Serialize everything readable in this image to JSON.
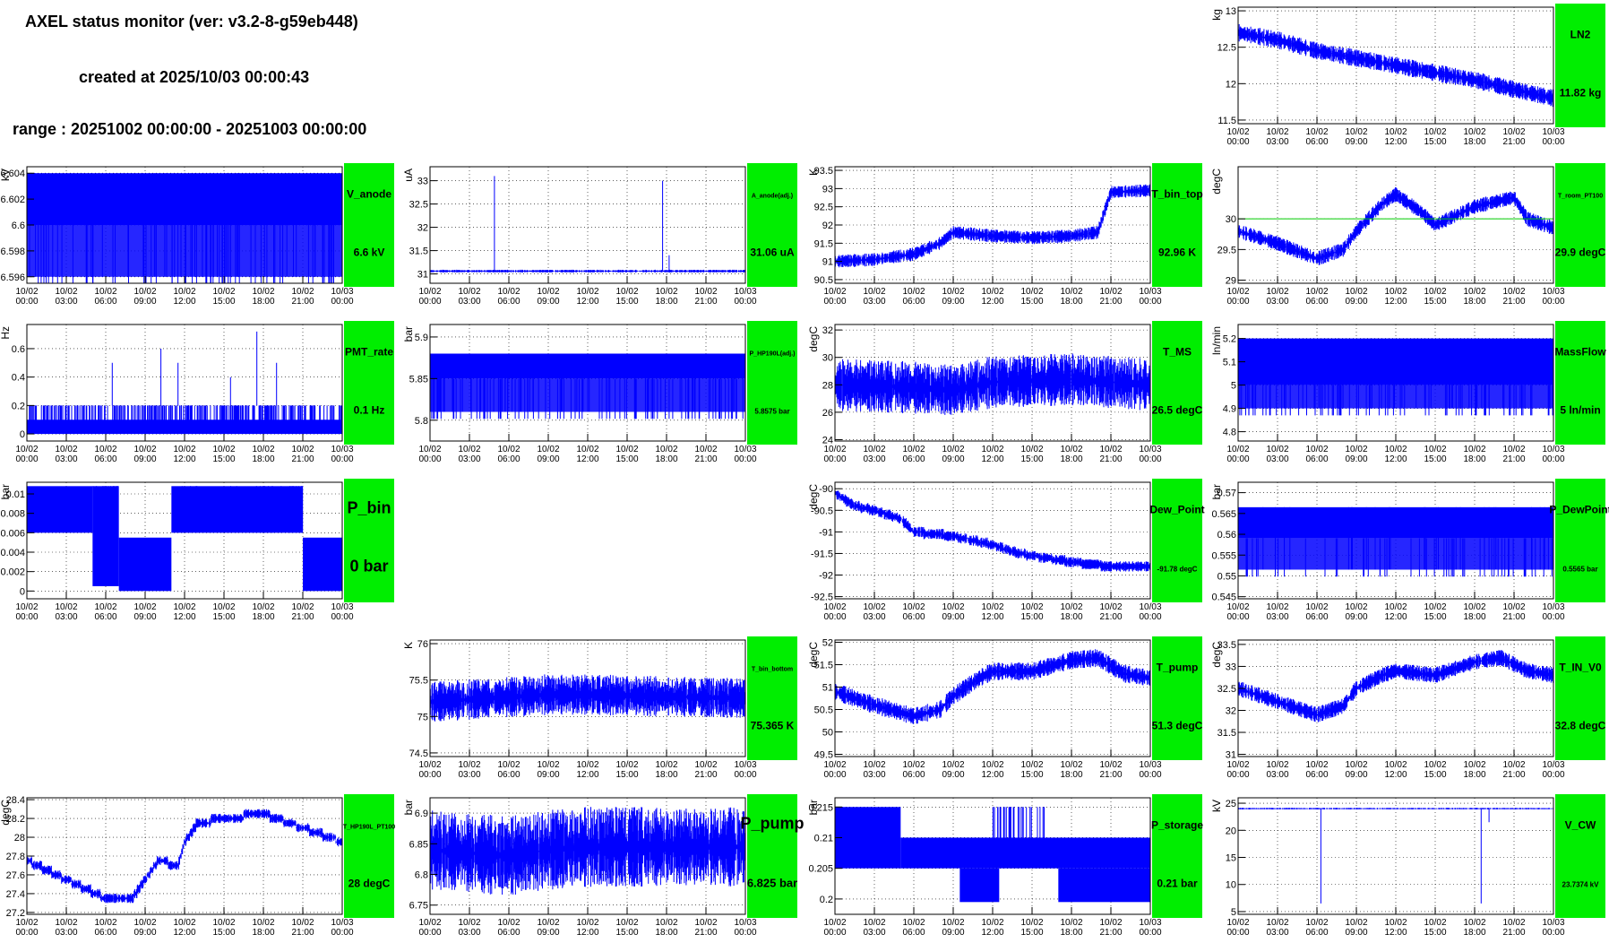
{
  "header": {
    "title": "AXEL status monitor (ver: v3.2-8-g59eb448)",
    "created": "created at 2025/10/03 00:00:43",
    "range": "range : 20251002 00:00:00 - 20251003 00:00:00"
  },
  "time_ticks": [
    {
      "date": "10/02",
      "time": "00:00"
    },
    {
      "date": "10/02",
      "time": "03:00"
    },
    {
      "date": "10/02",
      "time": "06:00"
    },
    {
      "date": "10/02",
      "time": "09:00"
    },
    {
      "date": "10/02",
      "time": "12:00"
    },
    {
      "date": "10/02",
      "time": "15:00"
    },
    {
      "date": "10/02",
      "time": "18:00"
    },
    {
      "date": "10/02",
      "time": "21:00"
    },
    {
      "date": "10/03",
      "time": "00:00"
    }
  ],
  "colors": {
    "trace": "#0000ff",
    "label_box": "#00ee00",
    "ref_line": "#00cc00"
  },
  "chart_data": [
    {
      "id": "LN2",
      "type": "line",
      "row": 0,
      "col": 3,
      "unit": "kg",
      "name": "LN2",
      "value": "11.82 kg",
      "bigfont": false,
      "ylim": [
        11.45,
        13.05
      ],
      "yticks": [
        "11.5",
        "12",
        "12.5",
        "13"
      ],
      "ytick_vals": [
        11.5,
        12,
        12.5,
        13
      ],
      "shape": "band",
      "points": [
        [
          0,
          12.7
        ],
        [
          3,
          12.6
        ],
        [
          6,
          12.45
        ],
        [
          9,
          12.35
        ],
        [
          12,
          12.25
        ],
        [
          15,
          12.15
        ],
        [
          18,
          12.05
        ],
        [
          21,
          11.92
        ],
        [
          24,
          11.8
        ]
      ],
      "noise": 0.12
    },
    {
      "id": "V_anode",
      "type": "line",
      "row": 1,
      "col": 0,
      "unit": "kV",
      "name": "V_anode",
      "value": "6.6 kV",
      "bigfont": false,
      "ylim": [
        6.5955,
        6.6045
      ],
      "yticks": [
        "6.596",
        "6.598",
        "6.6",
        "6.602",
        "6.604"
      ],
      "ytick_vals": [
        6.596,
        6.598,
        6.6,
        6.602,
        6.604
      ],
      "shape": "toggle",
      "levels": [
        6.604,
        6.596
      ],
      "split": 6.6,
      "drops": 60
    },
    {
      "id": "A_anode",
      "type": "line",
      "row": 1,
      "col": 1,
      "unit": "uA",
      "name": "A_anode(adj.)",
      "value": "31.06 uA",
      "bigfont": false,
      "ylim": [
        30.8,
        33.3
      ],
      "yticks": [
        "31",
        "31.5",
        "32",
        "32.5",
        "33"
      ],
      "ytick_vals": [
        31,
        31.5,
        32,
        32.5,
        33
      ],
      "shape": "flat",
      "points": [
        [
          0,
          31.06
        ],
        [
          24,
          31.06
        ]
      ],
      "noise": 0.03,
      "spikes": [
        [
          4.9,
          33.1
        ],
        [
          17.7,
          33.0
        ],
        [
          18.2,
          31.4
        ]
      ]
    },
    {
      "id": "T_bin_top",
      "type": "line",
      "row": 1,
      "col": 2,
      "unit": "K",
      "name": "T_bin_top",
      "value": "92.96 K",
      "bigfont": false,
      "ylim": [
        90.4,
        93.6
      ],
      "yticks": [
        "90.5",
        "91",
        "91.5",
        "92",
        "92.5",
        "93",
        "93.5"
      ],
      "ytick_vals": [
        90.5,
        91,
        91.5,
        92,
        92.5,
        93,
        93.5
      ],
      "shape": "noisy",
      "points": [
        [
          0,
          91.0
        ],
        [
          3,
          91.05
        ],
        [
          6,
          91.2
        ],
        [
          8,
          91.5
        ],
        [
          9,
          91.8
        ],
        [
          12,
          91.7
        ],
        [
          15,
          91.65
        ],
        [
          18,
          91.7
        ],
        [
          20,
          91.8
        ],
        [
          21,
          92.9
        ],
        [
          24,
          92.95
        ]
      ],
      "noise": 0.18
    },
    {
      "id": "T_room",
      "type": "line",
      "row": 1,
      "col": 3,
      "unit": "degC",
      "name": "T_room_PT100",
      "value": "29.9 degC",
      "bigfont": false,
      "ylim": [
        28.95,
        30.85
      ],
      "yticks": [
        "29",
        "29.5",
        "30"
      ],
      "ytick_vals": [
        29,
        29.5,
        30
      ],
      "shape": "noisy",
      "points": [
        [
          0,
          29.8
        ],
        [
          3,
          29.6
        ],
        [
          6,
          29.35
        ],
        [
          8,
          29.5
        ],
        [
          9,
          29.8
        ],
        [
          11,
          30.25
        ],
        [
          12,
          30.4
        ],
        [
          14,
          30.1
        ],
        [
          15,
          29.9
        ],
        [
          18,
          30.2
        ],
        [
          21,
          30.35
        ],
        [
          22,
          30.0
        ],
        [
          24,
          29.85
        ]
      ],
      "noise": 0.12,
      "refline": 30.0
    },
    {
      "id": "PMT_rate",
      "type": "line",
      "row": 2,
      "col": 0,
      "unit": "Hz",
      "name": "PMT_rate",
      "value": "0.1 Hz",
      "bigfont": false,
      "ylim": [
        -0.05,
        0.77
      ],
      "yticks": [
        "0",
        "0.2",
        "0.4",
        "0.6"
      ],
      "ytick_vals": [
        0,
        0.2,
        0.4,
        0.6
      ],
      "shape": "toggle3",
      "levels": [
        0.2,
        0.1,
        0.0
      ],
      "spikes": [
        [
          6.5,
          0.5
        ],
        [
          10.2,
          0.6
        ],
        [
          11.5,
          0.5
        ],
        [
          15.5,
          0.4
        ],
        [
          17.5,
          0.72
        ],
        [
          19,
          0.5
        ]
      ]
    },
    {
      "id": "P_HP190L",
      "type": "line",
      "row": 2,
      "col": 1,
      "unit": "bar",
      "name": "P_HP190L(adj.)",
      "value": "5.8575 bar",
      "bigfont": false,
      "ylim": [
        5.775,
        5.915
      ],
      "yticks": [
        "5.8",
        "5.85",
        "5.9"
      ],
      "ytick_vals": [
        5.8,
        5.85,
        5.9
      ],
      "shape": "toggle",
      "levels": [
        5.88,
        5.81
      ],
      "split": 5.85,
      "drops": 80
    },
    {
      "id": "T_MS",
      "type": "line",
      "row": 2,
      "col": 2,
      "unit": "degC",
      "name": "T_MS",
      "value": "26.5 degC",
      "bigfont": false,
      "ylim": [
        23.9,
        32.4
      ],
      "yticks": [
        "24",
        "26",
        "28",
        "30",
        "32"
      ],
      "ytick_vals": [
        24,
        26,
        28,
        30,
        32
      ],
      "shape": "noisy",
      "points": [
        [
          0,
          28.0
        ],
        [
          6,
          27.8
        ],
        [
          9,
          27.6
        ],
        [
          12,
          28.2
        ],
        [
          18,
          28.4
        ],
        [
          24,
          28.0
        ]
      ],
      "noise": 1.9
    },
    {
      "id": "MassFlow",
      "type": "line",
      "row": 2,
      "col": 3,
      "unit": "ln/min",
      "name": "MassFlow",
      "value": "5 ln/min",
      "bigfont": false,
      "ylim": [
        4.76,
        5.26
      ],
      "yticks": [
        "4.8",
        "4.9",
        "5",
        "5.1",
        "5.2"
      ],
      "ytick_vals": [
        4.8,
        4.9,
        5.0,
        5.1,
        5.2
      ],
      "shape": "toggle",
      "levels": [
        5.2,
        4.9
      ],
      "split": 5.0,
      "drops": 70
    },
    {
      "id": "P_bin",
      "type": "line",
      "row": 3,
      "col": 0,
      "unit": "bar",
      "name": "P_bin",
      "value": "0 bar",
      "bigfont": true,
      "ylim": [
        -0.0008,
        0.0112
      ],
      "yticks": [
        "0",
        "0.002",
        "0.004",
        "0.006",
        "0.008",
        "0.01"
      ],
      "ytick_vals": [
        0,
        0.002,
        0.004,
        0.006,
        0.008,
        0.01
      ],
      "shape": "pbin"
    },
    {
      "id": "Dew_Point",
      "type": "line",
      "row": 3,
      "col": 2,
      "unit": "degC",
      "name": "Dew_Point",
      "value": "-91.78 degC",
      "bigfont": false,
      "ylim": [
        -92.55,
        -89.85
      ],
      "yticks": [
        "-92.5",
        "-92",
        "-91.5",
        "-91",
        "-90.5",
        "-90"
      ],
      "ytick_vals": [
        -92.5,
        -92,
        -91.5,
        -91,
        -90.5,
        -90
      ],
      "shape": "steps",
      "points": [
        [
          0,
          -90.1
        ],
        [
          1.5,
          -90.4
        ],
        [
          3,
          -90.5
        ],
        [
          5,
          -90.7
        ],
        [
          6,
          -91.0
        ],
        [
          9,
          -91.1
        ],
        [
          12,
          -91.3
        ],
        [
          14,
          -91.5
        ],
        [
          16,
          -91.6
        ],
        [
          18,
          -91.7
        ],
        [
          21,
          -91.8
        ],
        [
          24,
          -91.8
        ]
      ],
      "noise": 0.12
    },
    {
      "id": "P_DewPoint",
      "type": "line",
      "row": 3,
      "col": 3,
      "unit": "bar",
      "name": "P_DewPoint",
      "value": "0.5565 bar",
      "bigfont": false,
      "ylim": [
        0.5445,
        0.5725
      ],
      "yticks": [
        "0.545",
        "0.55",
        "0.555",
        "0.56",
        "0.565",
        "0.57"
      ],
      "ytick_vals": [
        0.545,
        0.55,
        0.555,
        0.56,
        0.565,
        0.57
      ],
      "shape": "toggle",
      "levels": [
        0.5665,
        0.5515
      ],
      "split": 0.559,
      "drops": 50
    },
    {
      "id": "T_bin_bottom",
      "type": "line",
      "row": 4,
      "col": 1,
      "unit": "K",
      "name": "T_bin_bottom",
      "value": "75.365 K",
      "bigfont": false,
      "ylim": [
        74.45,
        76.05
      ],
      "yticks": [
        "74.5",
        "75",
        "75.5",
        "76"
      ],
      "ytick_vals": [
        74.5,
        75,
        75.5,
        76
      ],
      "shape": "noisy",
      "points": [
        [
          0,
          75.2
        ],
        [
          9,
          75.3
        ],
        [
          12,
          75.3
        ],
        [
          24,
          75.25
        ]
      ],
      "noise": 0.28
    },
    {
      "id": "T_pump",
      "type": "line",
      "row": 4,
      "col": 2,
      "unit": "degC",
      "name": "T_pump",
      "value": "51.3 degC",
      "bigfont": false,
      "ylim": [
        49.45,
        52.05
      ],
      "yticks": [
        "49.5",
        "50",
        "50.5",
        "51",
        "51.5",
        "52"
      ],
      "ytick_vals": [
        49.5,
        50,
        50.5,
        51,
        51.5,
        52
      ],
      "shape": "noisy",
      "points": [
        [
          0,
          50.9
        ],
        [
          3,
          50.6
        ],
        [
          6,
          50.35
        ],
        [
          8,
          50.5
        ],
        [
          9,
          50.8
        ],
        [
          11,
          51.2
        ],
        [
          12,
          51.35
        ],
        [
          15,
          51.35
        ],
        [
          18,
          51.6
        ],
        [
          20,
          51.65
        ],
        [
          22,
          51.3
        ],
        [
          24,
          51.2
        ]
      ],
      "noise": 0.2
    },
    {
      "id": "T_IN_V0",
      "type": "line",
      "row": 4,
      "col": 3,
      "unit": "degC",
      "name": "T_IN_V0",
      "value": "32.8 degC",
      "bigfont": false,
      "ylim": [
        30.95,
        33.6
      ],
      "yticks": [
        "31",
        "31.5",
        "32",
        "32.5",
        "33",
        "33.5"
      ],
      "ytick_vals": [
        31,
        31.5,
        32,
        32.5,
        33,
        33.5
      ],
      "shape": "noisy",
      "points": [
        [
          0,
          32.5
        ],
        [
          3,
          32.2
        ],
        [
          6,
          31.9
        ],
        [
          8,
          32.1
        ],
        [
          9,
          32.5
        ],
        [
          11,
          32.8
        ],
        [
          12,
          32.9
        ],
        [
          15,
          32.8
        ],
        [
          18,
          33.1
        ],
        [
          20,
          33.2
        ],
        [
          22,
          32.9
        ],
        [
          24,
          32.8
        ]
      ],
      "noise": 0.18
    },
    {
      "id": "T_HP190L",
      "type": "line",
      "row": 5,
      "col": 0,
      "unit": "degC",
      "name": "T_HP190L_PT100",
      "value": "28 degC",
      "bigfont": false,
      "ylim": [
        27.18,
        28.42
      ],
      "yticks": [
        "27.2",
        "27.4",
        "27.6",
        "27.8",
        "28",
        "28.2",
        "28.4"
      ],
      "ytick_vals": [
        27.2,
        27.4,
        27.6,
        27.8,
        28,
        28.2,
        28.4
      ],
      "shape": "steps",
      "points": [
        [
          0,
          27.75
        ],
        [
          1.5,
          27.65
        ],
        [
          3,
          27.55
        ],
        [
          4.5,
          27.45
        ],
        [
          6,
          27.35
        ],
        [
          8,
          27.35
        ],
        [
          9,
          27.55
        ],
        [
          10,
          27.75
        ],
        [
          11.5,
          27.7
        ],
        [
          12,
          27.95
        ],
        [
          13,
          28.15
        ],
        [
          15,
          28.2
        ],
        [
          18,
          28.25
        ],
        [
          20,
          28.15
        ],
        [
          22,
          28.05
        ],
        [
          24,
          27.95
        ]
      ],
      "noise": 0.05
    },
    {
      "id": "P_pump",
      "type": "line",
      "row": 5,
      "col": 1,
      "unit": "bar",
      "name": "P_pump",
      "value": "6.825 bar",
      "bigfont": true,
      "ylim": [
        6.735,
        6.925
      ],
      "yticks": [
        "6.75",
        "6.8",
        "6.85",
        "6.9"
      ],
      "ytick_vals": [
        6.75,
        6.8,
        6.85,
        6.9
      ],
      "shape": "noisy",
      "points": [
        [
          0,
          6.84
        ],
        [
          6,
          6.83
        ],
        [
          9,
          6.84
        ],
        [
          12,
          6.845
        ],
        [
          24,
          6.845
        ]
      ],
      "noise": 0.065
    },
    {
      "id": "P_storage",
      "type": "line",
      "row": 5,
      "col": 2,
      "unit": "bar",
      "name": "P_storage",
      "value": "0.21 bar",
      "bigfont": false,
      "ylim": [
        0.1975,
        0.2165
      ],
      "yticks": [
        "0.2",
        "0.205",
        "0.21",
        "0.215"
      ],
      "ytick_vals": [
        0.2,
        0.205,
        0.21,
        0.215
      ],
      "shape": "pstorage"
    },
    {
      "id": "V_CW",
      "type": "line",
      "row": 5,
      "col": 3,
      "unit": "kV",
      "name": "V_CW",
      "value": "23.7374 kV",
      "bigfont": false,
      "ylim": [
        4.5,
        26
      ],
      "yticks": [
        "5",
        "10",
        "15",
        "20",
        "25"
      ],
      "ytick_vals": [
        5,
        10,
        15,
        20,
        25
      ],
      "shape": "flat",
      "points": [
        [
          0,
          24.0
        ],
        [
          24,
          24.0
        ]
      ],
      "noise": 0.15,
      "spikes": [
        [
          6.3,
          6.5
        ],
        [
          18.5,
          6.5
        ],
        [
          19.1,
          21.5
        ]
      ]
    }
  ]
}
